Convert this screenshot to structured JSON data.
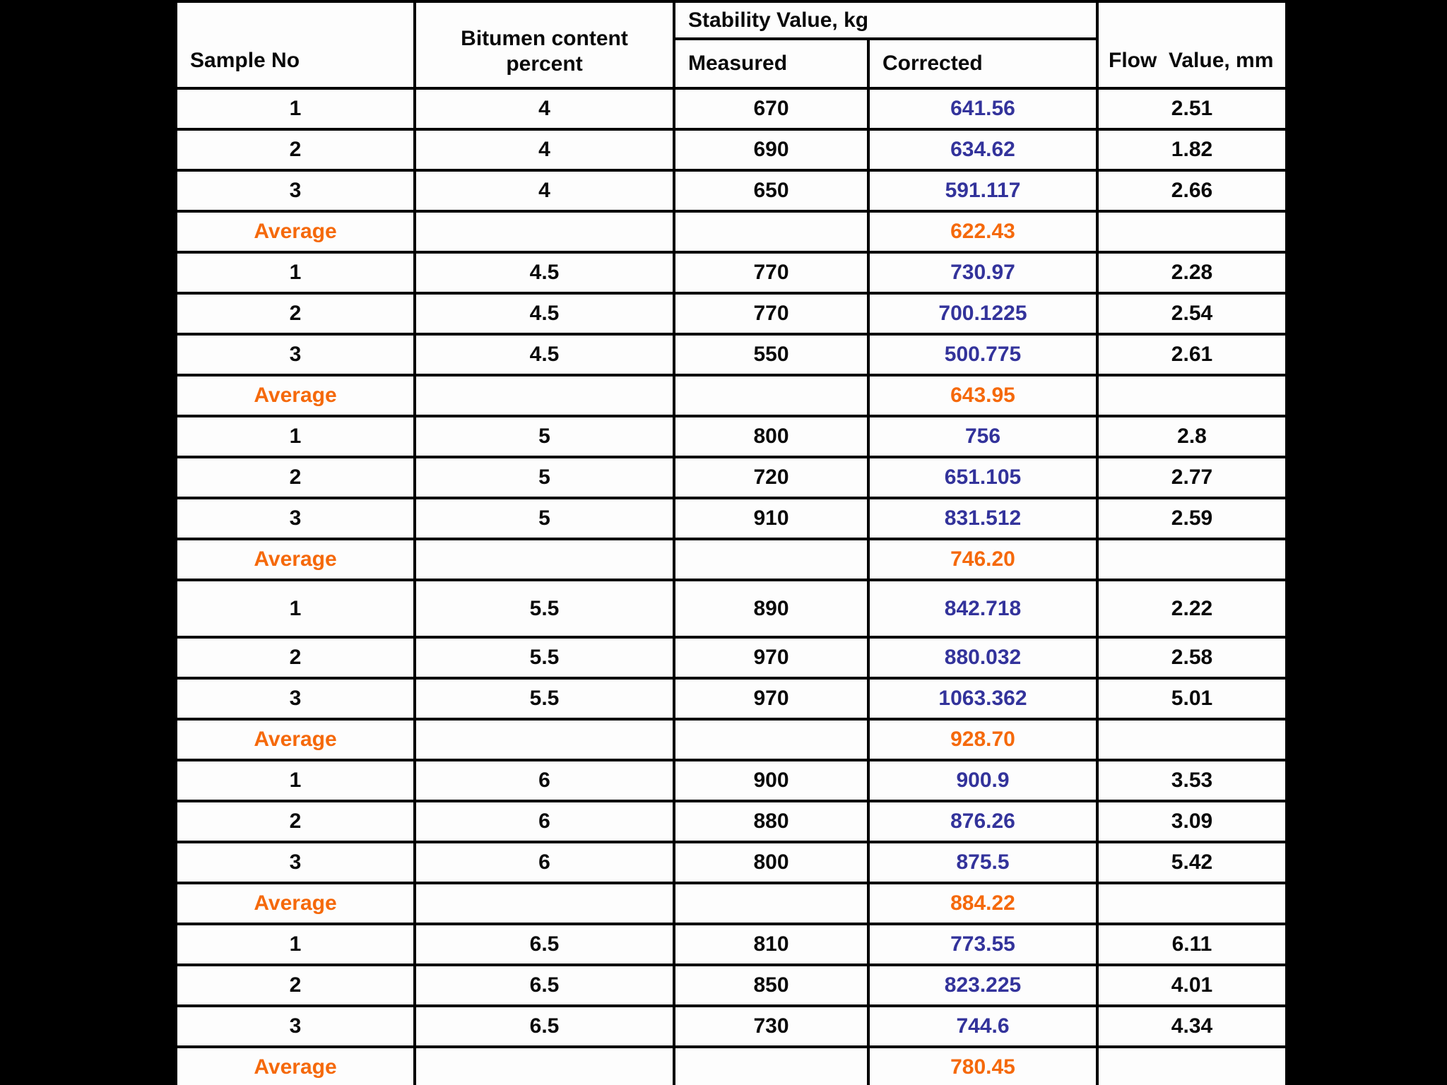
{
  "page": {
    "background_color": "#000000",
    "table_background_color": "#fdfdfd",
    "grid_color": "#000000",
    "corrected_value_color": "#33339B",
    "average_color": "#F5690B",
    "text_color": "#0a0a0a"
  },
  "table": {
    "headers": {
      "sample_no": "Sample No",
      "bitumen_line1": "Bitumen content",
      "bitumen_line2": "percent",
      "stability_group": "Stability Value, kg",
      "measured": "Measured",
      "corrected": "Corrected",
      "flow": "Flow  Value, mm"
    },
    "rows": [
      {
        "type": "data",
        "sample": "1",
        "bitumen": "4",
        "measured": "670",
        "corrected": "641.56",
        "flow": "2.51"
      },
      {
        "type": "data",
        "sample": "2",
        "bitumen": "4",
        "measured": "690",
        "corrected": "634.62",
        "flow": "1.82"
      },
      {
        "type": "data",
        "sample": "3",
        "bitumen": "4",
        "measured": "650",
        "corrected": "591.117",
        "flow": "2.66"
      },
      {
        "type": "average",
        "label": "Average",
        "bitumen": "",
        "measured": "",
        "corrected": "622.43",
        "flow": ""
      },
      {
        "type": "data",
        "sample": "1",
        "bitumen": "4.5",
        "measured": "770",
        "corrected": "730.97",
        "flow": "2.28"
      },
      {
        "type": "data",
        "sample": "2",
        "bitumen": "4.5",
        "measured": "770",
        "corrected": "700.1225",
        "flow": "2.54"
      },
      {
        "type": "data",
        "sample": "3",
        "bitumen": "4.5",
        "measured": "550",
        "corrected": "500.775",
        "flow": "2.61"
      },
      {
        "type": "average",
        "label": "Average",
        "bitumen": "",
        "measured": "",
        "corrected": "643.95",
        "flow": ""
      },
      {
        "type": "data",
        "sample": "1",
        "bitumen": "5",
        "measured": "800",
        "corrected": "756",
        "flow": "2.8"
      },
      {
        "type": "data",
        "sample": "2",
        "bitumen": "5",
        "measured": "720",
        "corrected": "651.105",
        "flow": "2.77"
      },
      {
        "type": "data",
        "sample": "3",
        "bitumen": "5",
        "measured": "910",
        "corrected": "831.512",
        "flow": "2.59"
      },
      {
        "type": "average",
        "label": "Average",
        "bitumen": "",
        "measured": "",
        "corrected": "746.20",
        "flow": ""
      },
      {
        "type": "data",
        "tall": true,
        "sample": "1",
        "bitumen": "5.5",
        "measured": "890",
        "corrected": "842.718",
        "flow": "2.22"
      },
      {
        "type": "data",
        "sample": "2",
        "bitumen": "5.5",
        "measured": "970",
        "corrected": "880.032",
        "flow": "2.58"
      },
      {
        "type": "data",
        "sample": "3",
        "bitumen": "5.5",
        "measured": "970",
        "corrected": "1063.362",
        "flow": "5.01"
      },
      {
        "type": "average",
        "label": "Average",
        "bitumen": "",
        "measured": "",
        "corrected": "928.70",
        "flow": ""
      },
      {
        "type": "data",
        "sample": "1",
        "bitumen": "6",
        "measured": "900",
        "corrected": "900.9",
        "flow": "3.53"
      },
      {
        "type": "data",
        "sample": "2",
        "bitumen": "6",
        "measured": "880",
        "corrected": "876.26",
        "flow": "3.09"
      },
      {
        "type": "data",
        "sample": "3",
        "bitumen": "6",
        "measured": "800",
        "corrected": "875.5",
        "flow": "5.42"
      },
      {
        "type": "average",
        "label": "Average",
        "bitumen": "",
        "measured": "",
        "corrected": "884.22",
        "flow": ""
      },
      {
        "type": "data",
        "sample": "1",
        "bitumen": "6.5",
        "measured": "810",
        "corrected": "773.55",
        "flow": "6.11"
      },
      {
        "type": "data",
        "sample": "2",
        "bitumen": "6.5",
        "measured": "850",
        "corrected": "823.225",
        "flow": "4.01"
      },
      {
        "type": "data",
        "sample": "3",
        "bitumen": "6.5",
        "measured": "730",
        "corrected": "744.6",
        "flow": "4.34"
      },
      {
        "type": "average",
        "label": "Average",
        "bitumen": "",
        "measured": "",
        "corrected": "780.45",
        "flow": ""
      }
    ]
  },
  "chart_data": {
    "type": "table",
    "columns": [
      "Sample No",
      "Bitumen content percent",
      "Stability Value Measured, kg",
      "Stability Value Corrected, kg",
      "Flow Value, mm"
    ],
    "rows": [
      [
        "1",
        "4",
        "670",
        "641.56",
        "2.51"
      ],
      [
        "2",
        "4",
        "690",
        "634.62",
        "1.82"
      ],
      [
        "3",
        "4",
        "650",
        "591.117",
        "2.66"
      ],
      [
        "Average",
        "",
        "",
        "622.43",
        ""
      ],
      [
        "1",
        "4.5",
        "770",
        "730.97",
        "2.28"
      ],
      [
        "2",
        "4.5",
        "770",
        "700.1225",
        "2.54"
      ],
      [
        "3",
        "4.5",
        "550",
        "500.775",
        "2.61"
      ],
      [
        "Average",
        "",
        "",
        "643.95",
        ""
      ],
      [
        "1",
        "5",
        "800",
        "756",
        "2.8"
      ],
      [
        "2",
        "5",
        "720",
        "651.105",
        "2.77"
      ],
      [
        "3",
        "5",
        "910",
        "831.512",
        "2.59"
      ],
      [
        "Average",
        "",
        "",
        "746.20",
        ""
      ],
      [
        "1",
        "5.5",
        "890",
        "842.718",
        "2.22"
      ],
      [
        "2",
        "5.5",
        "970",
        "880.032",
        "2.58"
      ],
      [
        "3",
        "5.5",
        "970",
        "1063.362",
        "5.01"
      ],
      [
        "Average",
        "",
        "",
        "928.70",
        ""
      ],
      [
        "1",
        "6",
        "900",
        "900.9",
        "3.53"
      ],
      [
        "2",
        "6",
        "880",
        "876.26",
        "3.09"
      ],
      [
        "3",
        "6",
        "800",
        "875.5",
        "5.42"
      ],
      [
        "Average",
        "",
        "",
        "884.22",
        ""
      ],
      [
        "1",
        "6.5",
        "810",
        "773.55",
        "6.11"
      ],
      [
        "2",
        "6.5",
        "850",
        "823.225",
        "4.01"
      ],
      [
        "3",
        "6.5",
        "730",
        "744.6",
        "4.34"
      ],
      [
        "Average",
        "",
        "",
        "780.45",
        ""
      ]
    ]
  }
}
